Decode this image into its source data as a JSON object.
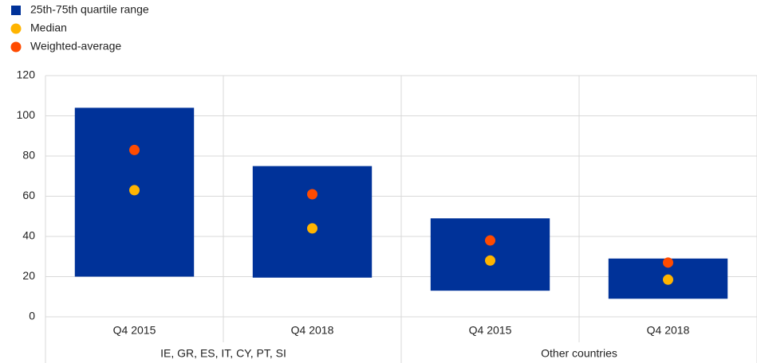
{
  "chart_data": {
    "type": "range",
    "categories": [
      "Q4 2015",
      "Q4 2018",
      "Q4 2015",
      "Q4 2018"
    ],
    "groups": [
      "IE, GR, ES, IT, CY, PT, SI",
      "Other countries"
    ],
    "series": [
      {
        "name": "25th-75th quartile range",
        "color": "#003299",
        "low": [
          20,
          19.5,
          13,
          9
        ],
        "high": [
          104,
          75,
          49,
          29
        ]
      },
      {
        "name": "Median",
        "color": "#ffb400",
        "values": [
          63,
          44,
          28,
          18.5
        ]
      },
      {
        "name": "Weighted-average",
        "color": "#ff4b00",
        "values": [
          83,
          61,
          38,
          27
        ]
      }
    ],
    "ylim": [
      0,
      120
    ],
    "yticks": [
      0,
      20,
      40,
      60,
      80,
      100,
      120
    ],
    "grid": true
  }
}
